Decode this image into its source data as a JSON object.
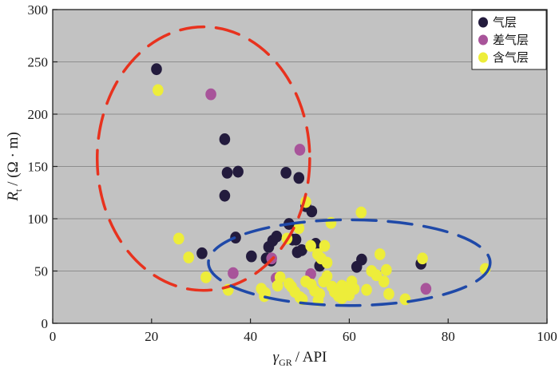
{
  "chart_data": {
    "type": "scatter",
    "title": "",
    "xlabel": {
      "symbol": "γ",
      "subscript": "GR",
      "unit": "/ API"
    },
    "ylabel": {
      "symbol": "R",
      "subscript": "t",
      "unit": "/ (Ω · m)"
    },
    "xlim": [
      0,
      100
    ],
    "ylim": [
      0,
      300
    ],
    "xticks": [
      0,
      20,
      40,
      60,
      80,
      100
    ],
    "yticks": [
      0,
      50,
      100,
      150,
      200,
      250,
      300
    ],
    "grid": "horizontal",
    "legend_position": "top-right",
    "background_color": "#c2c2c2",
    "series": [
      {
        "name": "气层",
        "color": "#231b3d",
        "points": [
          [
            21,
            243
          ],
          [
            34.8,
            176
          ],
          [
            35.3,
            144
          ],
          [
            37.5,
            145
          ],
          [
            34.8,
            122
          ],
          [
            47.2,
            144
          ],
          [
            49.8,
            139
          ],
          [
            37,
            82
          ],
          [
            30.2,
            67
          ],
          [
            40.2,
            64
          ],
          [
            43.2,
            62
          ],
          [
            43.7,
            73
          ],
          [
            44.5,
            79
          ],
          [
            45.3,
            83
          ],
          [
            47.8,
            95
          ],
          [
            48.5,
            80
          ],
          [
            49.2,
            80
          ],
          [
            49.5,
            68
          ],
          [
            50.4,
            70
          ],
          [
            51.2,
            112
          ],
          [
            52.4,
            107
          ],
          [
            53.2,
            76
          ],
          [
            54,
            55
          ],
          [
            61.5,
            54
          ],
          [
            62.5,
            61
          ],
          [
            74.5,
            57
          ],
          [
            44.2,
            60
          ]
        ]
      },
      {
        "name": "差气层",
        "color": "#a8549a",
        "points": [
          [
            32,
            219
          ],
          [
            50,
            166
          ],
          [
            36.5,
            48
          ],
          [
            44.3,
            62
          ],
          [
            45.2,
            43
          ],
          [
            52.2,
            47
          ],
          [
            75.5,
            33
          ]
        ]
      },
      {
        "name": "含气层",
        "color": "#eded3a",
        "points": [
          [
            21.3,
            223
          ],
          [
            25.5,
            81
          ],
          [
            27.5,
            63
          ],
          [
            31,
            44
          ],
          [
            35.5,
            32
          ],
          [
            42.2,
            33
          ],
          [
            43,
            29
          ],
          [
            46,
            44
          ],
          [
            47.8,
            38
          ],
          [
            48.3,
            35
          ],
          [
            49,
            30
          ],
          [
            50,
            25
          ],
          [
            50.5,
            23
          ],
          [
            51.2,
            40
          ],
          [
            52.3,
            37
          ],
          [
            53,
            31
          ],
          [
            54,
            28
          ],
          [
            54.8,
            40
          ],
          [
            55.5,
            45
          ],
          [
            56.5,
            35
          ],
          [
            57,
            30
          ],
          [
            57.8,
            26
          ],
          [
            58.5,
            36
          ],
          [
            59.5,
            31
          ],
          [
            60,
            27
          ],
          [
            60.5,
            40
          ],
          [
            61,
            33
          ],
          [
            47.4,
            81
          ],
          [
            49.8,
            91
          ],
          [
            51.2,
            116
          ],
          [
            52.2,
            74
          ],
          [
            53.6,
            66
          ],
          [
            54.3,
            62
          ],
          [
            55,
            74
          ],
          [
            55.5,
            58
          ],
          [
            56.3,
            96
          ],
          [
            62.4,
            106
          ],
          [
            63.5,
            32
          ],
          [
            64.5,
            50
          ],
          [
            65.5,
            46
          ],
          [
            66.2,
            66
          ],
          [
            67,
            40
          ],
          [
            67.5,
            51
          ],
          [
            68,
            28
          ],
          [
            71.3,
            23
          ],
          [
            74.8,
            62
          ],
          [
            87.5,
            52
          ],
          [
            42.8,
            26
          ],
          [
            45.5,
            36
          ],
          [
            53.7,
            22
          ],
          [
            58.5,
            24
          ],
          [
            60.3,
            35
          ]
        ]
      }
    ],
    "annotations": [
      {
        "shape": "dashed-ellipse",
        "color": "#e8321e",
        "cx": 30.5,
        "cy": 157.5,
        "rx": 21.5,
        "ry": 126
      },
      {
        "shape": "dashed-ellipse",
        "color": "#1f49a8",
        "cx": 60,
        "cy": 58,
        "rx": 28.5,
        "ry": 41
      }
    ]
  }
}
